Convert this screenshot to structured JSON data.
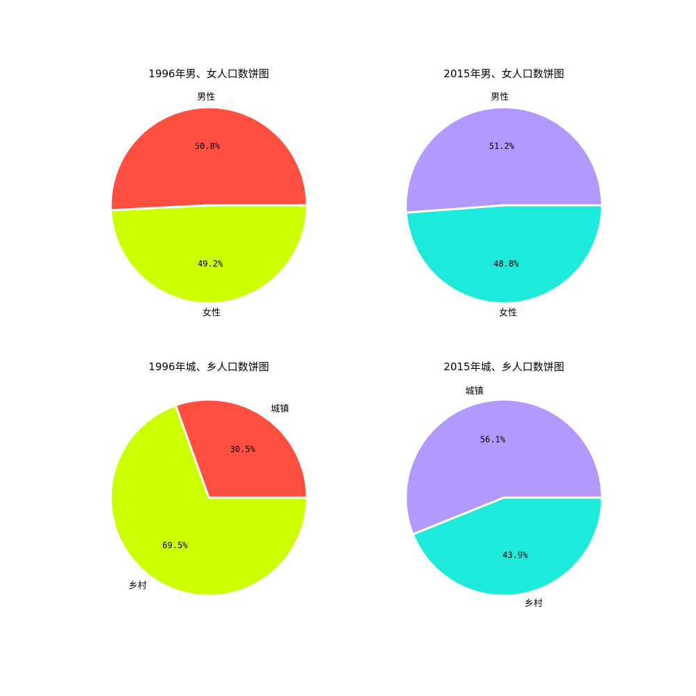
{
  "chart_data": [
    {
      "type": "pie",
      "title": "1996年男、女人口数饼图",
      "categories": [
        "男性",
        "女性"
      ],
      "values": [
        50.8,
        49.2
      ],
      "value_labels": [
        "50.8%",
        "49.2%"
      ],
      "colors": [
        "#ff4f40",
        "#ccff00"
      ],
      "start_angle_deg": 0
    },
    {
      "type": "pie",
      "title": "2015年男、女人口数饼图",
      "categories": [
        "男性",
        "女性"
      ],
      "values": [
        51.2,
        48.8
      ],
      "value_labels": [
        "51.2%",
        "48.8%"
      ],
      "colors": [
        "#b399ff",
        "#1deadb"
      ],
      "start_angle_deg": 0
    },
    {
      "type": "pie",
      "title": "1996年城、乡人口数饼图",
      "categories": [
        "城镇",
        "乡村"
      ],
      "values": [
        30.5,
        69.5
      ],
      "value_labels": [
        "30.5%",
        "69.5%"
      ],
      "colors": [
        "#ff4f40",
        "#ccff00"
      ],
      "start_angle_deg": 0
    },
    {
      "type": "pie",
      "title": "2015年城、乡人口数饼图",
      "categories": [
        "城镇",
        "乡村"
      ],
      "values": [
        56.1,
        43.9
      ],
      "value_labels": [
        "56.1%",
        "43.9%"
      ],
      "colors": [
        "#b399ff",
        "#1deadb"
      ],
      "start_angle_deg": 0
    }
  ]
}
